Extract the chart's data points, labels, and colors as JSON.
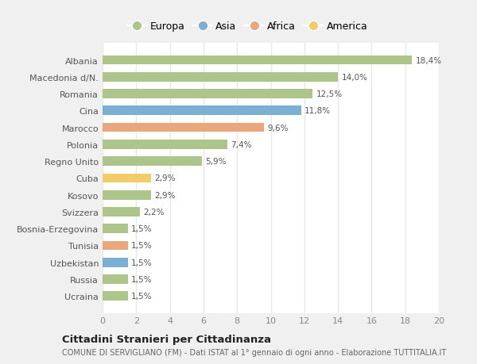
{
  "countries": [
    "Albania",
    "Macedonia d/N.",
    "Romania",
    "Cina",
    "Marocco",
    "Polonia",
    "Regno Unito",
    "Cuba",
    "Kosovo",
    "Svizzera",
    "Bosnia-Erzegovina",
    "Tunisia",
    "Uzbekistan",
    "Russia",
    "Ucraina"
  ],
  "values": [
    18.4,
    14.0,
    12.5,
    11.8,
    9.6,
    7.4,
    5.9,
    2.9,
    2.9,
    2.2,
    1.5,
    1.5,
    1.5,
    1.5,
    1.5
  ],
  "labels": [
    "18,4%",
    "14,0%",
    "12,5%",
    "11,8%",
    "9,6%",
    "7,4%",
    "5,9%",
    "2,9%",
    "2,9%",
    "2,2%",
    "1,5%",
    "1,5%",
    "1,5%",
    "1,5%",
    "1,5%"
  ],
  "continents": [
    "Europa",
    "Europa",
    "Europa",
    "Asia",
    "Africa",
    "Europa",
    "Europa",
    "America",
    "Europa",
    "Europa",
    "Europa",
    "Africa",
    "Asia",
    "Europa",
    "Europa"
  ],
  "continent_colors": {
    "Europa": "#adc48a",
    "Asia": "#7bafd4",
    "Africa": "#e8a87c",
    "America": "#f2cc6a"
  },
  "legend_order": [
    "Europa",
    "Asia",
    "Africa",
    "America"
  ],
  "title": "Cittadini Stranieri per Cittadinanza",
  "subtitle": "COMUNE DI SERVIGLIANO (FM) - Dati ISTAT al 1° gennaio di ogni anno - Elaborazione TUTTITALIA.IT",
  "xlim": [
    0,
    20
  ],
  "xticks": [
    0,
    2,
    4,
    6,
    8,
    10,
    12,
    14,
    16,
    18,
    20
  ],
  "bg_color": "#f0f0f0",
  "plot_bg_color": "#ffffff",
  "grid_color": "#e8e8e8",
  "bar_height": 0.55
}
